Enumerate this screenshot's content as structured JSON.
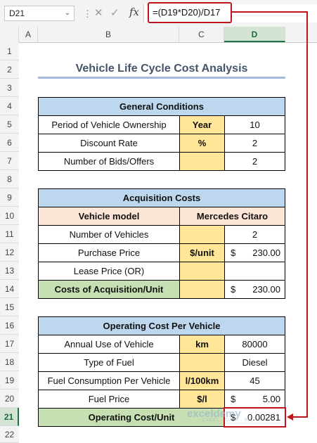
{
  "formula_bar": {
    "name_box": "D21",
    "formula": "=(D19*D20)/D17",
    "icons": [
      "cancel-icon",
      "enter-icon",
      "function-icon"
    ],
    "fx_label": "fx"
  },
  "columns": [
    "A",
    "B",
    "C",
    "D"
  ],
  "rows": [
    "1",
    "2",
    "3",
    "4",
    "5",
    "6",
    "7",
    "8",
    "9",
    "10",
    "11",
    "12",
    "13",
    "14",
    "15",
    "16",
    "17",
    "18",
    "19",
    "20",
    "21",
    "22"
  ],
  "title": "Vehicle Life Cycle Cost Analysis",
  "general": {
    "header": "General Conditions",
    "r5": {
      "label": "Period of Vehicle Ownership",
      "unit": "Year",
      "value": "10"
    },
    "r6": {
      "label": "Discount Rate",
      "unit": "%",
      "value": "2"
    },
    "r7": {
      "label": "Number of Bids/Offers",
      "unit": "",
      "value": "2"
    }
  },
  "acquisition": {
    "header": "Acquisition Costs",
    "model_label": "Vehicle model",
    "model_value": "Mercedes Citaro",
    "r11": {
      "label": "Number of Vehicles",
      "unit": "",
      "value": "2"
    },
    "r12": {
      "label": "Purchase Price",
      "unit": "$/unit",
      "currency": "$",
      "value": "230.00"
    },
    "r13": {
      "label": "Lease Price (OR)",
      "unit": "",
      "value": ""
    },
    "r14": {
      "label": "Costs of Acquisition/Unit",
      "unit": "",
      "currency": "$",
      "value": "230.00"
    }
  },
  "operating": {
    "header": "Operating Cost Per Vehicle",
    "r17": {
      "label": "Annual Use of Vehicle",
      "unit": "km",
      "value": "80000"
    },
    "r18": {
      "label": "Type of Fuel",
      "unit": "",
      "value": "Diesel"
    },
    "r19": {
      "label": "Fuel Consumption Per Vehicle",
      "unit": "l/100km",
      "value": "45"
    },
    "r20": {
      "label": "Fuel Price",
      "unit": "$/l",
      "currency": "$",
      "value": "5.00"
    },
    "r21": {
      "label": "Operating Cost/Unit",
      "unit": "",
      "currency": "$",
      "value": "0.00281"
    }
  },
  "watermark": {
    "brand": "exceldemy",
    "tagline": "EXCEL · DATA · BI"
  },
  "colors": {
    "accent_red": "#c0151b",
    "header_blue": "#bdd7ee",
    "header_peach": "#fce4d6",
    "unit_yellow": "#ffe699",
    "total_green": "#c6e0b4"
  }
}
